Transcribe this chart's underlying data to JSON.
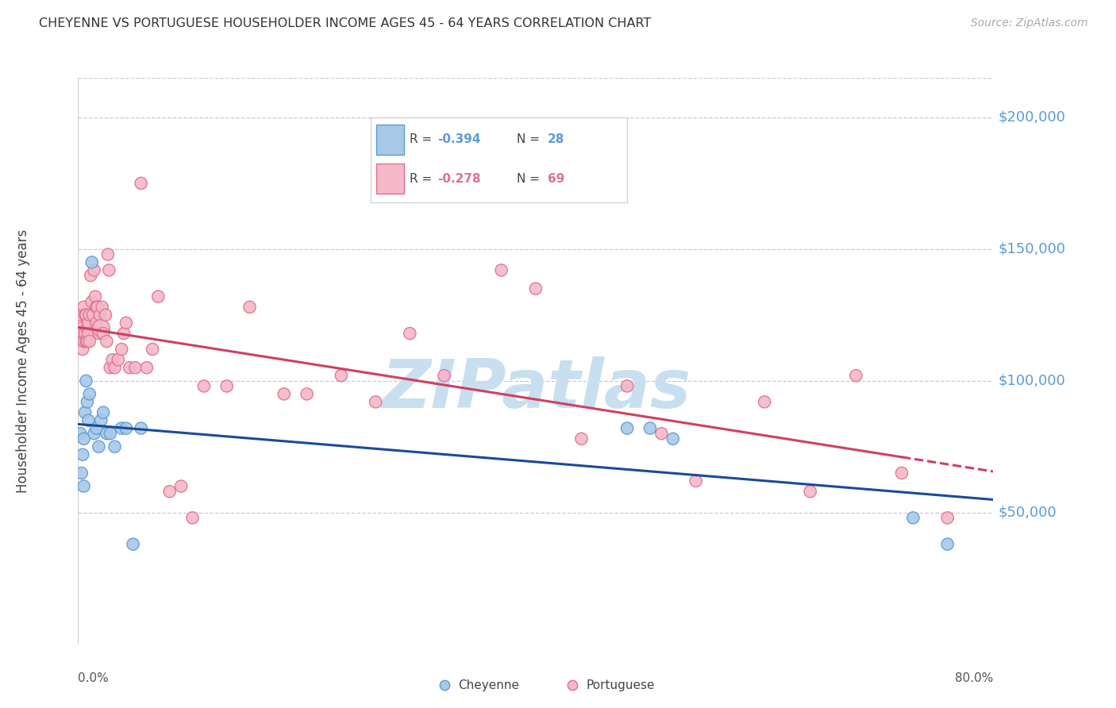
{
  "title": "CHEYENNE VS PORTUGUESE HOUSEHOLDER INCOME AGES 45 - 64 YEARS CORRELATION CHART",
  "source": "Source: ZipAtlas.com",
  "ylabel": "Householder Income Ages 45 - 64 years",
  "ytick_values": [
    50000,
    100000,
    150000,
    200000
  ],
  "ymin": 0,
  "ymax": 215000,
  "xmin": 0.0,
  "xmax": 0.8,
  "cheyenne_color": "#a8c8e8",
  "cheyenne_edge_color": "#5b9bd5",
  "portuguese_color": "#f4b8c8",
  "portuguese_edge_color": "#e07090",
  "cheyenne_line_color": "#1a4a9a",
  "portuguese_line_color": "#d04060",
  "watermark_text": "ZIPatlas",
  "watermark_color": "#c8dff0",
  "legend_r_cheyenne": "-0.394",
  "legend_n_cheyenne": "28",
  "legend_r_portuguese": "-0.278",
  "legend_n_portuguese": "69",
  "cheyenne_x": [
    0.002,
    0.003,
    0.004,
    0.005,
    0.005,
    0.006,
    0.007,
    0.008,
    0.009,
    0.01,
    0.012,
    0.014,
    0.016,
    0.018,
    0.02,
    0.022,
    0.025,
    0.028,
    0.032,
    0.038,
    0.042,
    0.048,
    0.055,
    0.48,
    0.5,
    0.52,
    0.73,
    0.76
  ],
  "cheyenne_y": [
    80000,
    65000,
    72000,
    60000,
    78000,
    88000,
    100000,
    92000,
    85000,
    95000,
    145000,
    80000,
    82000,
    75000,
    85000,
    88000,
    80000,
    80000,
    75000,
    82000,
    82000,
    38000,
    82000,
    82000,
    82000,
    78000,
    48000,
    38000
  ],
  "cheyenne_size": [
    120,
    120,
    120,
    120,
    120,
    120,
    120,
    120,
    120,
    120,
    120,
    120,
    120,
    120,
    120,
    120,
    120,
    120,
    120,
    120,
    120,
    120,
    120,
    120,
    120,
    120,
    120,
    120
  ],
  "portuguese_x": [
    0.002,
    0.003,
    0.004,
    0.004,
    0.005,
    0.005,
    0.006,
    0.006,
    0.007,
    0.007,
    0.008,
    0.008,
    0.009,
    0.009,
    0.01,
    0.01,
    0.011,
    0.012,
    0.013,
    0.014,
    0.015,
    0.016,
    0.016,
    0.017,
    0.018,
    0.019,
    0.02,
    0.021,
    0.022,
    0.024,
    0.025,
    0.026,
    0.027,
    0.028,
    0.03,
    0.032,
    0.035,
    0.038,
    0.04,
    0.042,
    0.045,
    0.05,
    0.055,
    0.06,
    0.065,
    0.07,
    0.08,
    0.09,
    0.1,
    0.11,
    0.13,
    0.15,
    0.18,
    0.2,
    0.23,
    0.26,
    0.29,
    0.32,
    0.37,
    0.4,
    0.44,
    0.48,
    0.51,
    0.54,
    0.6,
    0.64,
    0.68,
    0.72,
    0.76
  ],
  "portuguese_y": [
    125000,
    120000,
    118000,
    112000,
    128000,
    115000,
    125000,
    118000,
    115000,
    125000,
    120000,
    115000,
    122000,
    118000,
    125000,
    115000,
    140000,
    130000,
    125000,
    142000,
    132000,
    128000,
    122000,
    128000,
    118000,
    125000,
    120000,
    128000,
    118000,
    125000,
    115000,
    148000,
    142000,
    105000,
    108000,
    105000,
    108000,
    112000,
    118000,
    122000,
    105000,
    105000,
    175000,
    105000,
    112000,
    132000,
    58000,
    60000,
    48000,
    98000,
    98000,
    128000,
    95000,
    95000,
    102000,
    92000,
    118000,
    102000,
    142000,
    135000,
    78000,
    98000,
    80000,
    62000,
    92000,
    58000,
    102000,
    65000,
    48000
  ],
  "portuguese_size": [
    120,
    120,
    120,
    120,
    120,
    120,
    120,
    120,
    120,
    120,
    120,
    120,
    120,
    120,
    120,
    120,
    120,
    120,
    120,
    120,
    120,
    120,
    120,
    120,
    120,
    120,
    250,
    120,
    120,
    120,
    120,
    120,
    120,
    120,
    120,
    120,
    120,
    120,
    120,
    120,
    120,
    120,
    120,
    120,
    120,
    120,
    120,
    120,
    120,
    120,
    120,
    120,
    120,
    120,
    120,
    120,
    120,
    120,
    120,
    120,
    120,
    120,
    120,
    120,
    120,
    120,
    120,
    120,
    120
  ]
}
